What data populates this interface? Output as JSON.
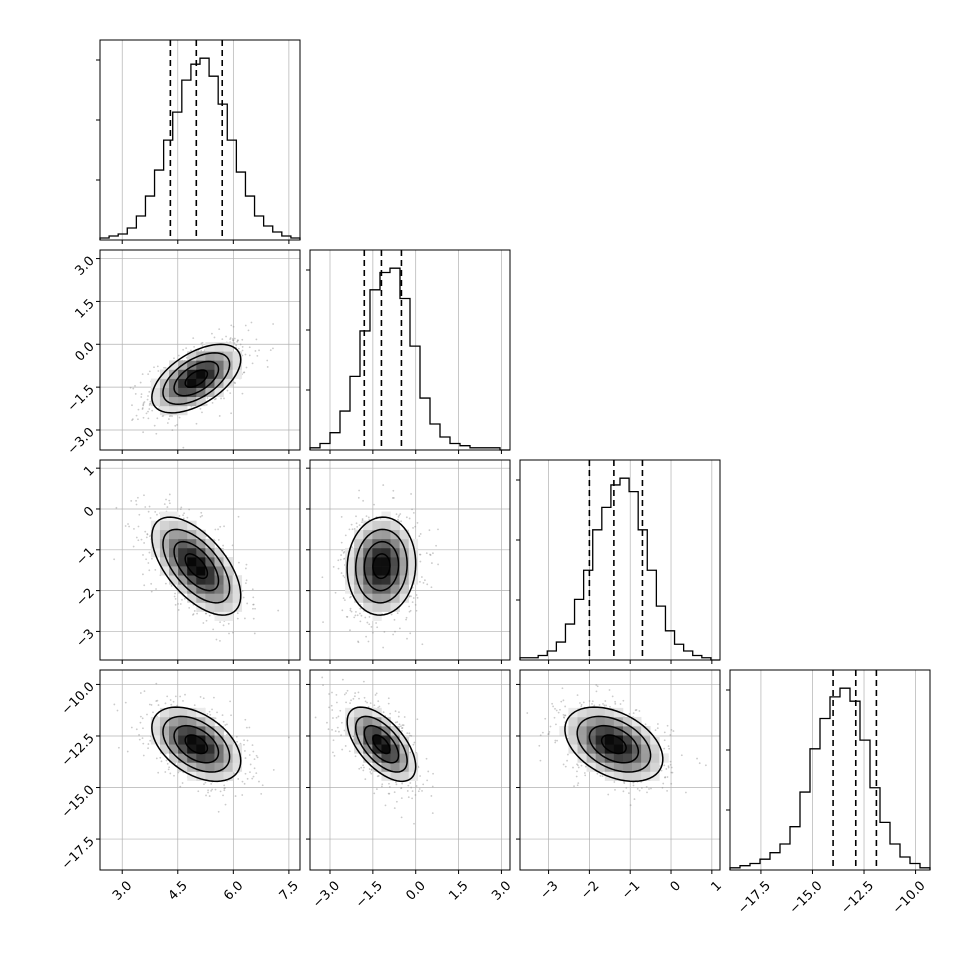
{
  "chart_data": {
    "type": "corner",
    "n_params": 4,
    "grid": true,
    "parameters": [
      {
        "index": 0,
        "range": [
          2.4,
          7.8
        ],
        "ticks": [
          3.0,
          4.5,
          6.0,
          7.5
        ],
        "tick_labels": [
          "3.0",
          "4.5",
          "6.0",
          "7.5"
        ],
        "quantiles": [
          4.3,
          5.0,
          5.7
        ],
        "mean": 5.0,
        "std": 0.6,
        "hist_counts": [
          1,
          2,
          3,
          6,
          12,
          22,
          35,
          50,
          64,
          80,
          88,
          91,
          82,
          68,
          50,
          34,
          22,
          12,
          7,
          4,
          2,
          1
        ]
      },
      {
        "index": 1,
        "range": [
          -3.7,
          3.3
        ],
        "ticks": [
          -3.0,
          -1.5,
          0.0,
          1.5,
          3.0
        ],
        "tick_labels": [
          "−3.0",
          "−1.5",
          "0.0",
          "1.5",
          "3.0"
        ],
        "quantiles": [
          -1.8,
          -1.2,
          -0.5
        ],
        "mean": -1.2,
        "std": 0.6,
        "hist_counts": [
          1,
          3,
          8,
          18,
          34,
          55,
          74,
          82,
          84,
          70,
          48,
          24,
          12,
          6,
          3,
          2,
          1,
          1,
          1,
          0
        ]
      },
      {
        "index": 2,
        "range": [
          -3.7,
          1.2
        ],
        "ticks": [
          -3,
          -2,
          -1,
          0,
          1
        ],
        "tick_labels": [
          "−3",
          "−2",
          "−1",
          "0",
          "1"
        ],
        "quantiles": [
          -2.0,
          -1.4,
          -0.7
        ],
        "mean": -1.4,
        "std": 0.6,
        "hist_counts": [
          1,
          1,
          2,
          4,
          8,
          16,
          27,
          40,
          58,
          68,
          78,
          81,
          75,
          58,
          40,
          24,
          13,
          7,
          4,
          2,
          1,
          0
        ]
      },
      {
        "index": 3,
        "range": [
          -19.0,
          -9.3
        ],
        "ticks": [
          -17.5,
          -15.0,
          -12.5,
          -10.0
        ],
        "tick_labels": [
          "−17.5",
          "−15.0",
          "−12.5",
          "−10.0"
        ],
        "quantiles": [
          -14.0,
          -12.9,
          -11.9
        ],
        "mean": -12.9,
        "std": 0.9,
        "hist_counts": [
          1,
          2,
          3,
          5,
          8,
          12,
          20,
          36,
          56,
          70,
          80,
          84,
          78,
          60,
          38,
          22,
          12,
          6,
          3,
          1
        ]
      }
    ],
    "correlations": {
      "1_0": 0.55,
      "2_0": -0.6,
      "2_1": 0.05,
      "3_0": -0.45,
      "3_1": -0.6,
      "3_2": -0.4
    },
    "colors": {
      "line": "#000000",
      "grid": "#b0b0b0",
      "points": "#8c8c8c"
    }
  }
}
